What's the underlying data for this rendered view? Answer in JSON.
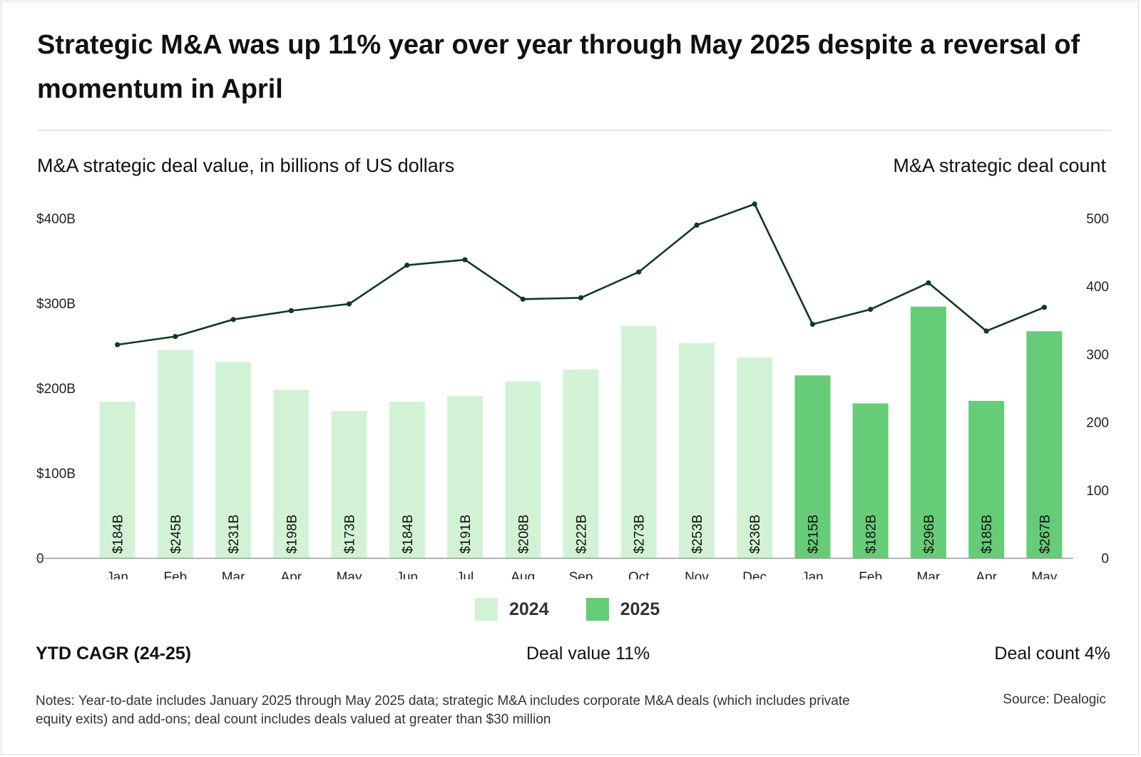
{
  "header": {
    "title": "Strategic M&A was up 11% year over year through May 2025 despite a reversal of momentum in April"
  },
  "axes": {
    "left_title": "M&A strategic deal value, in billions of US dollars",
    "right_title": "M&A strategic deal count"
  },
  "legend": {
    "items": [
      {
        "label": "2024",
        "color": "#d2f2d6"
      },
      {
        "label": "2025",
        "color": "#66cc77"
      }
    ]
  },
  "summary": {
    "label": "YTD CAGR (24-25)",
    "deal_value": "Deal value 11%",
    "deal_count": "Deal count 4%"
  },
  "footer": {
    "notes": "Notes: Year-to-date includes January 2025 through May 2025 data; strategic M&A includes corporate M&A deals (which includes private equity exits) and add-ons; deal count includes deals valued at greater than $30 million",
    "source": "Source: Dealogic"
  },
  "chart_data": {
    "type": "bar",
    "categories": [
      "Jan",
      "Feb",
      "Mar",
      "Apr",
      "May",
      "Jun",
      "Jul",
      "Aug",
      "Sep",
      "Oct",
      "Nov",
      "Dec",
      "Jan",
      "Feb",
      "Mar",
      "Apr",
      "May"
    ],
    "years": [
      "2024",
      "2024",
      "2024",
      "2024",
      "2024",
      "2024",
      "2024",
      "2024",
      "2024",
      "2024",
      "2024",
      "2024",
      "2025",
      "2025",
      "2025",
      "2025",
      "2025"
    ],
    "series": [
      {
        "name": "",
        "type": "bar",
        "axis": "left",
        "values": [
          184,
          245,
          231,
          198,
          173,
          184,
          191,
          208,
          222,
          273,
          253,
          236,
          215,
          182,
          296,
          185,
          267
        ],
        "data_labels": [
          "$184B",
          "$245B",
          "$231B",
          "$198B",
          "$173B",
          "$184B",
          "$191B",
          "$208B",
          "$222B",
          "$273B",
          "$253B",
          "$236B",
          "$215B",
          "$182B",
          "$296B",
          "$185B",
          "$267B"
        ]
      },
      {
        "name": "",
        "type": "line",
        "axis": "right",
        "color": "#0e3b1c",
        "values": [
          314,
          326,
          351,
          364,
          374,
          431,
          439,
          381,
          383,
          421,
          490,
          521,
          344,
          366,
          405,
          334,
          369
        ]
      }
    ],
    "colors": {
      "2024": "#d2f2d6",
      "2025": "#66cc77"
    },
    "y_left": {
      "min": 0,
      "max": 400,
      "ticks": [
        "0",
        "$100B",
        "$200B",
        "$300B",
        "$400B"
      ]
    },
    "y_right": {
      "min": 0,
      "max": 500,
      "ticks": [
        "0",
        "100",
        "200",
        "300",
        "400",
        "500"
      ]
    },
    "grid": false,
    "legend_position": "bottom"
  }
}
